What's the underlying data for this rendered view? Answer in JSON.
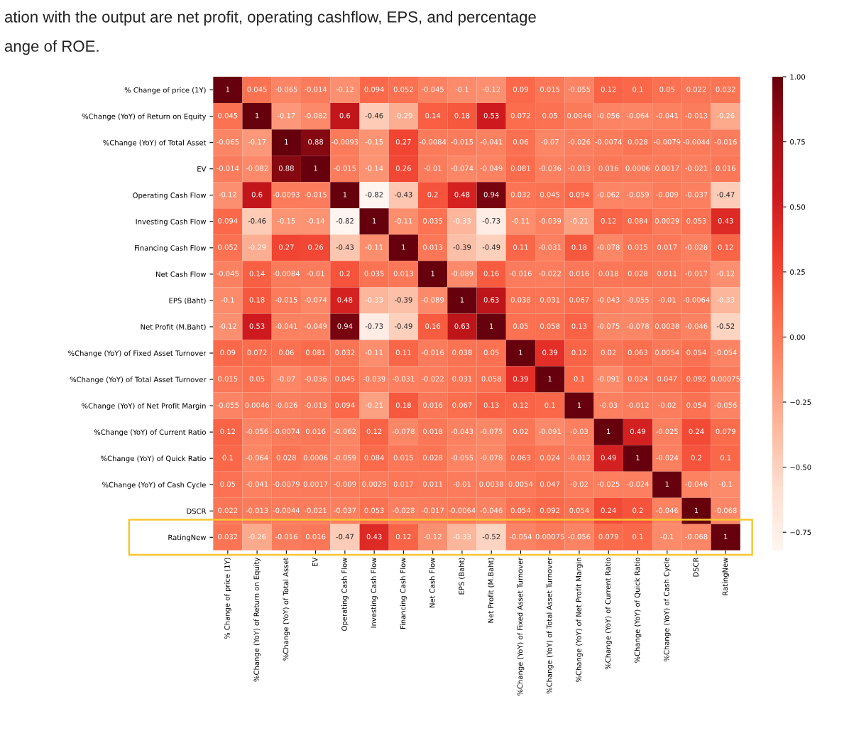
{
  "chart_data": {
    "type": "heatmap",
    "annotations": [
      "ation with the output are net profit, operating cashflow, EPS, and percentage",
      "ange of ROE."
    ],
    "categories": [
      "% Change of price (1Y)",
      "%Change (YoY) of Return on Equity",
      "%Change (YoY) of Total Asset",
      "EV",
      "Operating Cash Flow",
      "Investing Cash Flow",
      "Financing Cash Flow",
      "Net Cash Flow",
      "EPS (Baht)",
      "Net Profit (M.Baht)",
      "%Change (YoY) of Fixed Asset Turnover",
      "%Change (YoY) of Total Asset Turnover",
      "%Change (YoY) of Net Profit Margin",
      "%Change (YoY) of Current Ratio",
      "%Change (YoY) of Quick Ratio",
      "%Change (YoY) of Cash Cycle",
      "DSCR",
      "RatingNew"
    ],
    "y_categories": [
      "% Change of price (1Y)",
      "%Change (YoY) of Return on Equity",
      "%Change (YoY) of Total Asset",
      "EV",
      "Operating Cash Flow",
      "Investing Cash Flow",
      "Financing Cash Flow",
      "Net Cash Flow",
      "EPS (Baht)",
      "Net Profit (M.Baht)",
      "%Change (YoY) of Fixed Asset Turnover",
      "%Change (YoY) of Total Asset Turnover",
      "%Change (YoY) of Net Profit Margin",
      "%Change (YoY) of Current Ratio",
      "%Change (YoY) of Quick Ratio",
      "%Change (YoY) of Cash Cycle",
      "DSCR",
      "RatingNew"
    ],
    "cells": [
      [
        1,
        0.045,
        -0.065,
        -0.014,
        -0.12,
        0.094,
        0.052,
        -0.045,
        -0.1,
        -0.12,
        0.09,
        0.015,
        -0.055,
        0.12,
        0.1,
        0.05,
        0.022,
        0.032
      ],
      [
        0.045,
        1,
        -0.17,
        -0.082,
        0.6,
        -0.46,
        -0.29,
        0.14,
        0.18,
        0.53,
        0.072,
        0.05,
        0.0046,
        -0.056,
        -0.064,
        -0.041,
        -0.013,
        -0.26
      ],
      [
        -0.065,
        -0.17,
        1,
        0.88,
        -0.0093,
        -0.15,
        0.27,
        -0.0084,
        -0.015,
        -0.041,
        0.06,
        -0.07,
        -0.026,
        -0.0074,
        0.028,
        -0.0079,
        -0.0044,
        -0.016
      ],
      [
        -0.014,
        -0.082,
        0.88,
        1,
        -0.015,
        -0.14,
        0.26,
        -0.01,
        -0.074,
        -0.049,
        0.081,
        -0.036,
        -0.013,
        0.016,
        0.0006,
        0.0017,
        -0.021,
        0.016
      ],
      [
        -0.12,
        0.6,
        -0.0093,
        -0.015,
        1,
        -0.82,
        -0.43,
        0.2,
        0.48,
        0.94,
        0.032,
        0.045,
        0.094,
        -0.062,
        -0.059,
        -0.009,
        -0.037,
        -0.47
      ],
      [
        0.094,
        -0.46,
        -0.15,
        -0.14,
        -0.82,
        1,
        -0.11,
        0.035,
        -0.33,
        -0.73,
        -0.11,
        -0.039,
        -0.21,
        0.12,
        0.084,
        0.0029,
        0.053,
        0.43
      ],
      [
        0.052,
        -0.29,
        0.27,
        0.26,
        -0.43,
        -0.11,
        1,
        0.013,
        -0.39,
        -0.49,
        0.11,
        -0.031,
        0.18,
        -0.078,
        0.015,
        0.017,
        -0.028,
        0.12
      ],
      [
        -0.045,
        0.14,
        -0.0084,
        -0.01,
        0.2,
        0.035,
        0.013,
        1,
        -0.089,
        0.16,
        -0.016,
        -0.022,
        0.016,
        0.018,
        0.028,
        0.011,
        -0.017,
        -0.12
      ],
      [
        -0.1,
        0.18,
        -0.015,
        -0.074,
        0.48,
        -0.33,
        -0.39,
        -0.089,
        1,
        0.63,
        0.038,
        0.031,
        0.067,
        -0.043,
        -0.055,
        -0.01,
        -0.0064,
        -0.33
      ],
      [
        -0.12,
        0.53,
        -0.041,
        -0.049,
        0.94,
        -0.73,
        -0.49,
        0.16,
        0.63,
        1,
        0.05,
        0.058,
        0.13,
        -0.075,
        -0.078,
        0.0038,
        -0.046,
        -0.52
      ],
      [
        0.09,
        0.072,
        0.06,
        0.081,
        0.032,
        -0.11,
        0.11,
        -0.016,
        0.038,
        0.05,
        1,
        0.39,
        0.12,
        0.02,
        0.063,
        0.0054,
        0.054,
        -0.054
      ],
      [
        0.015,
        0.05,
        -0.07,
        -0.036,
        0.045,
        -0.039,
        -0.031,
        -0.022,
        0.031,
        0.058,
        0.39,
        1,
        0.1,
        -0.091,
        0.024,
        0.047,
        0.092,
        0.00075
      ],
      [
        -0.055,
        0.0046,
        -0.026,
        -0.013,
        0.094,
        -0.21,
        0.18,
        0.016,
        0.067,
        0.13,
        0.12,
        0.1,
        1,
        -0.03,
        -0.012,
        -0.02,
        0.054,
        -0.056
      ],
      [
        0.12,
        -0.056,
        -0.0074,
        0.016,
        -0.062,
        0.12,
        -0.078,
        0.018,
        -0.043,
        -0.075,
        0.02,
        -0.091,
        -0.03,
        1,
        0.49,
        -0.025,
        0.24,
        0.079
      ],
      [
        0.1,
        -0.064,
        0.028,
        0.0006,
        -0.059,
        0.084,
        0.015,
        0.028,
        -0.055,
        -0.078,
        0.063,
        0.024,
        -0.012,
        0.49,
        1,
        -0.024,
        0.2,
        0.1
      ],
      [
        0.05,
        -0.041,
        -0.0079,
        0.0017,
        -0.009,
        0.0029,
        0.017,
        0.011,
        -0.01,
        0.0038,
        0.0054,
        0.047,
        -0.02,
        -0.025,
        -0.024,
        1,
        -0.046,
        -0.1
      ],
      [
        0.022,
        -0.013,
        -0.0044,
        -0.021,
        -0.037,
        0.053,
        -0.028,
        -0.017,
        -0.0064,
        -0.046,
        0.054,
        0.092,
        0.054,
        0.24,
        0.2,
        -0.046,
        1,
        -0.068
      ],
      [
        0.032,
        -0.26,
        -0.016,
        0.016,
        -0.47,
        0.43,
        0.12,
        -0.12,
        -0.33,
        -0.52,
        -0.054,
        0.00075,
        -0.056,
        0.079,
        0.1,
        -0.1,
        -0.068,
        1
      ]
    ],
    "clim": [
      -0.82,
      1
    ],
    "cticks": [
      {
        "value": -0.75,
        "label": "−0.75"
      },
      {
        "value": -0.5,
        "label": "−0.50"
      },
      {
        "value": -0.25,
        "label": "−0.25"
      },
      {
        "value": 0,
        "label": "0.00"
      },
      {
        "value": 0.25,
        "label": "0.25"
      },
      {
        "value": 0.5,
        "label": "0.50"
      },
      {
        "value": 0.75,
        "label": "0.75"
      },
      {
        "value": 1,
        "label": "1.00"
      }
    ],
    "data_labels": true
  }
}
